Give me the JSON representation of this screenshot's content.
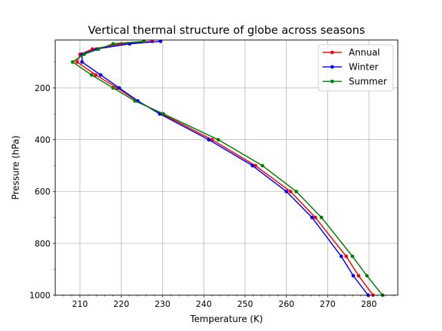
{
  "chart_data": {
    "type": "line",
    "title": "Vertical thermal structure of globe across seasons",
    "xlabel": "Temperature (K)",
    "ylabel": "Pressure (hPa)",
    "xlim": [
      204,
      287
    ],
    "ylim": [
      1000,
      15
    ],
    "y_inverted": true,
    "grid": true,
    "legend_position": "top-right",
    "xticks": [
      210,
      220,
      230,
      240,
      250,
      260,
      270,
      280
    ],
    "xtick_labels": [
      "210",
      "220",
      "230",
      "240",
      "250",
      "260",
      "270",
      "280"
    ],
    "yticks": [
      200,
      400,
      600,
      800,
      1000
    ],
    "ytick_labels": [
      "200",
      "400",
      "600",
      "800",
      "1000"
    ],
    "pressure_levels": [
      20,
      30,
      50,
      70,
      100,
      150,
      200,
      250,
      300,
      400,
      500,
      600,
      700,
      850,
      925,
      1000
    ],
    "series": [
      {
        "name": "Annual",
        "color": "#ff0000",
        "values": [
          227.5,
          220.0,
          213.0,
          210.0,
          209.3,
          213.8,
          219.0,
          223.8,
          229.8,
          242.0,
          252.5,
          261.0,
          267.0,
          274.5,
          277.5,
          281.0
        ]
      },
      {
        "name": "Winter",
        "color": "#0000ff",
        "values": [
          229.5,
          222.0,
          214.0,
          210.5,
          210.5,
          215.0,
          219.5,
          224.0,
          229.3,
          241.2,
          251.8,
          260.0,
          266.2,
          273.3,
          276.2,
          279.8
        ]
      },
      {
        "name": "Summer",
        "color": "#008000",
        "values": [
          225.5,
          218.0,
          214.5,
          211.0,
          208.2,
          212.8,
          218.0,
          223.3,
          230.2,
          243.5,
          254.2,
          262.4,
          268.5,
          276.0,
          279.5,
          283.3
        ]
      }
    ]
  }
}
